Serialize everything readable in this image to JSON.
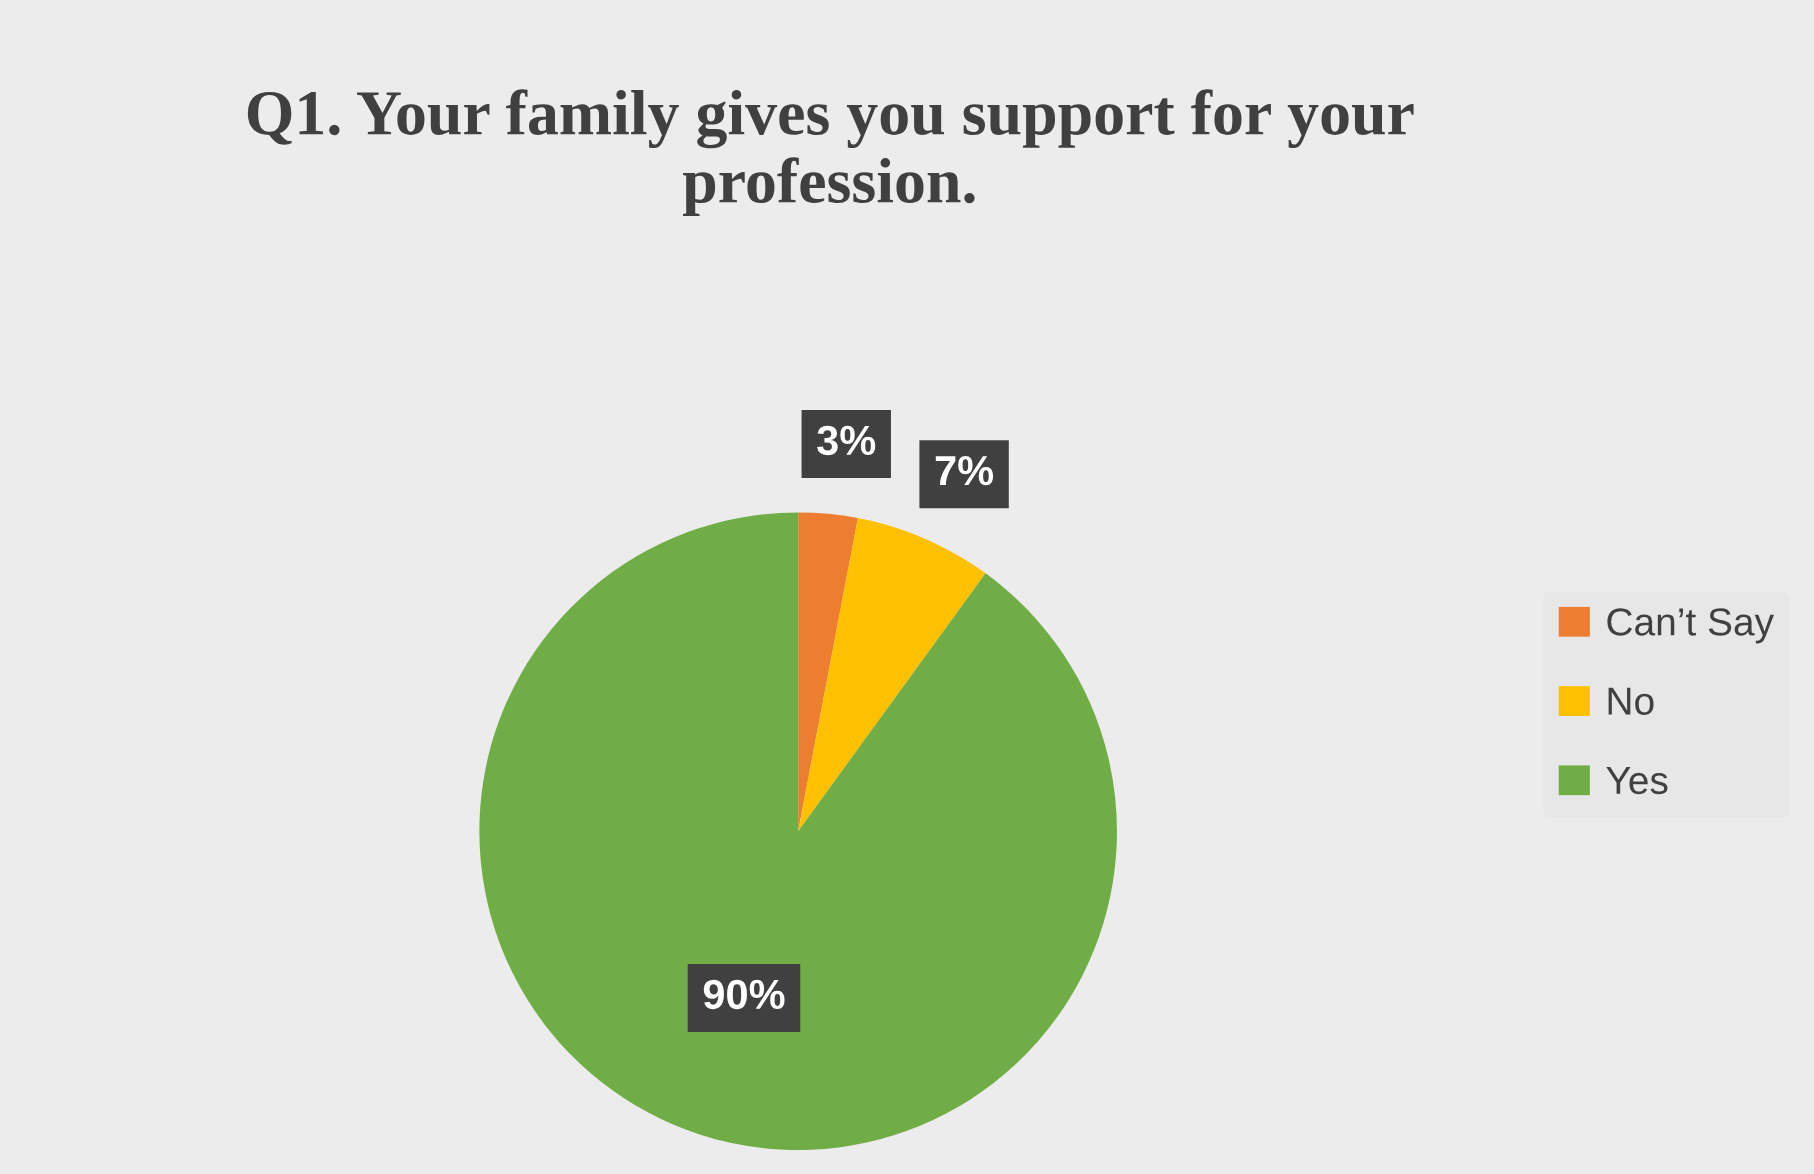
{
  "chart_data": {
    "type": "pie",
    "title": "Q1. Your family gives you support for your profession.",
    "categories": [
      "Can’t Say",
      "No",
      "Yes"
    ],
    "values": [
      3,
      7,
      90
    ],
    "colors": [
      "#ed7d31",
      "#ffc000",
      "#70ad47"
    ],
    "value_labels": [
      "3%",
      "7%",
      "90%"
    ],
    "legend": "right"
  }
}
